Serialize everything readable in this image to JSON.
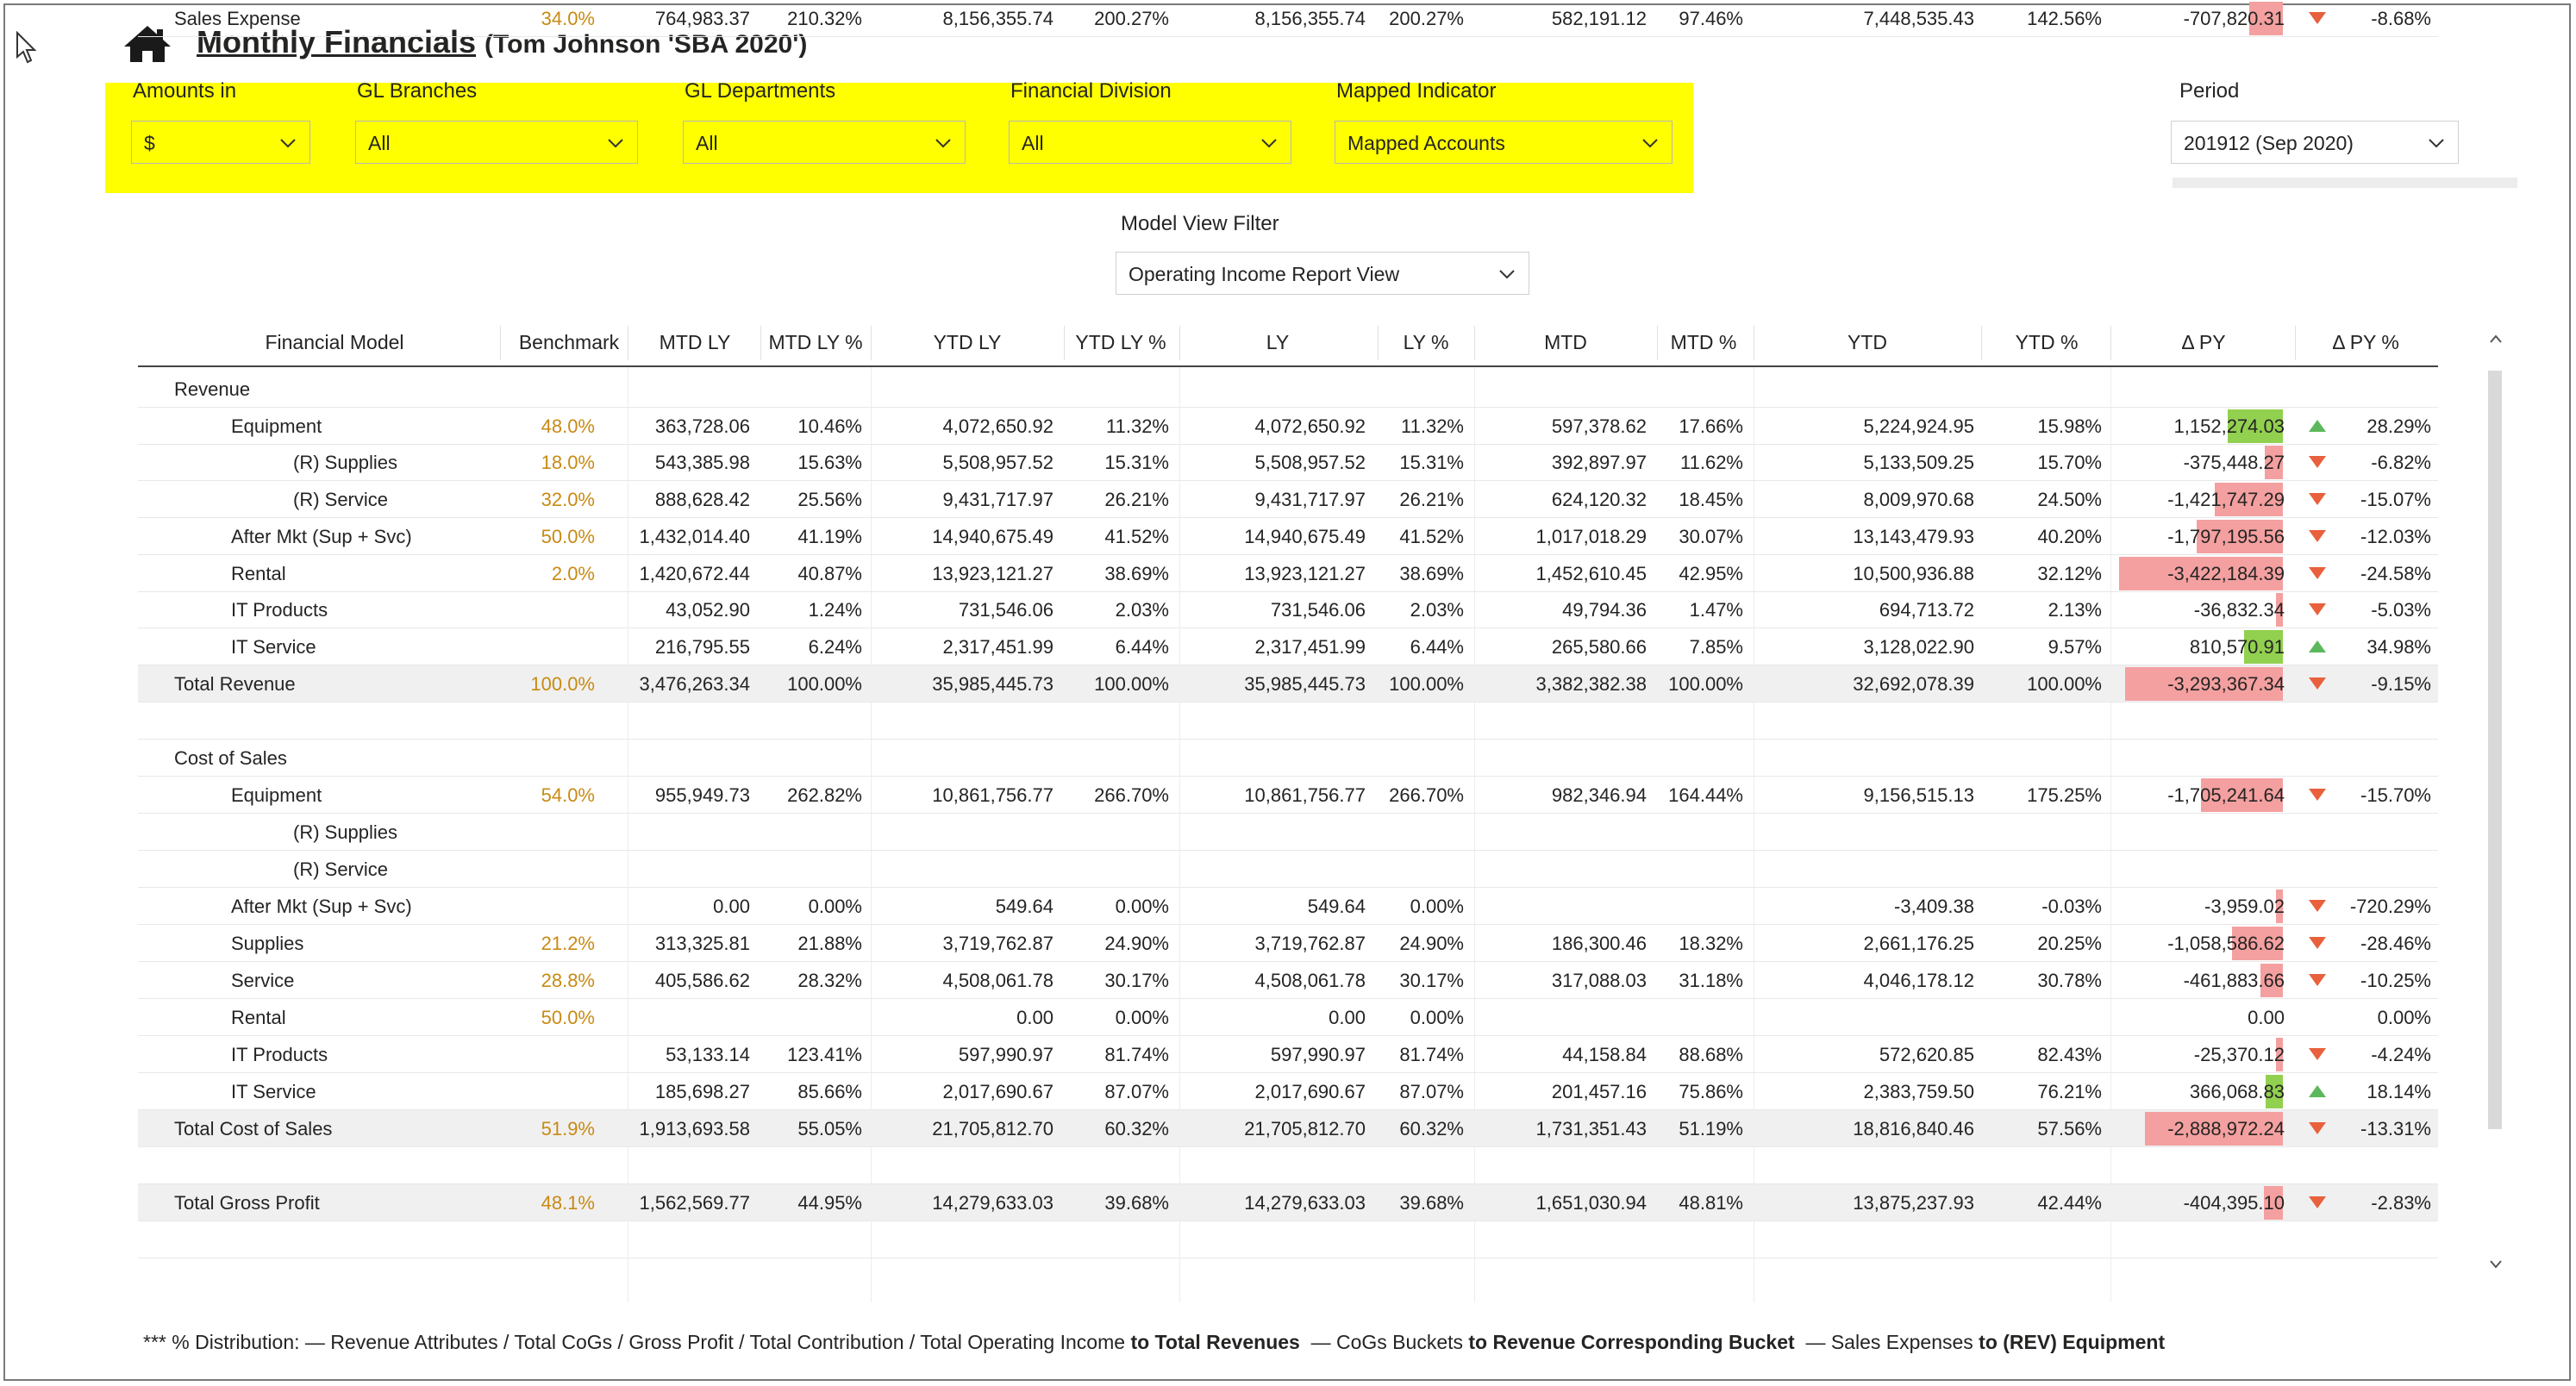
{
  "header": {
    "title": "Monthly Financials",
    "subtitle": "(Tom Johnson 'SBA 2020')"
  },
  "filters": [
    {
      "label": "Amounts in",
      "value": "$"
    },
    {
      "label": "GL Branches",
      "value": "All"
    },
    {
      "label": "GL Departments",
      "value": "All"
    },
    {
      "label": "Financial Division",
      "value": "All"
    },
    {
      "label": "Mapped Indicator",
      "value": "Mapped Accounts"
    }
  ],
  "period": {
    "label": "Period",
    "value": "201912 (Sep 2020)"
  },
  "model_view": {
    "label": "Model View Filter",
    "value": "Operating Income Report View"
  },
  "table": {
    "columns": [
      "Financial Model",
      "Benchmark",
      "MTD LY",
      "MTD LY %",
      "YTD LY",
      "YTD LY %",
      "LY",
      "LY %",
      "MTD",
      "MTD %",
      "YTD",
      "YTD %",
      "Δ PY",
      "Δ PY %"
    ],
    "rows": [
      {
        "label": "Revenue",
        "level": 0,
        "cells": [
          "",
          "",
          "",
          "",
          "",
          "",
          "",
          "",
          "",
          "",
          "",
          "",
          ""
        ]
      },
      {
        "label": "Equipment",
        "level": 1,
        "cells": [
          "48.0%",
          "363,728.06",
          "10.46%",
          "4,072,650.92",
          "11.32%",
          "4,072,650.92",
          "11.32%",
          "597,378.62",
          "17.66%",
          "5,224,924.95",
          "15.98%",
          "1,152,274.03",
          "28.29%"
        ],
        "delta": 1152274.03,
        "dir": "up"
      },
      {
        "label": "(R) Supplies",
        "level": 2,
        "cells": [
          "18.0%",
          "543,385.98",
          "15.63%",
          "5,508,957.52",
          "15.31%",
          "5,508,957.52",
          "15.31%",
          "392,897.97",
          "11.62%",
          "5,133,509.25",
          "15.70%",
          "-375,448.27",
          "-6.82%"
        ],
        "delta": -375448.27,
        "dir": "down"
      },
      {
        "label": "(R) Service",
        "level": 2,
        "cells": [
          "32.0%",
          "888,628.42",
          "25.56%",
          "9,431,717.97",
          "26.21%",
          "9,431,717.97",
          "26.21%",
          "624,120.32",
          "18.45%",
          "8,009,970.68",
          "24.50%",
          "-1,421,747.29",
          "-15.07%"
        ],
        "delta": -1421747.29,
        "dir": "down"
      },
      {
        "label": "After Mkt (Sup + Svc)",
        "level": 1,
        "cells": [
          "50.0%",
          "1,432,014.40",
          "41.19%",
          "14,940,675.49",
          "41.52%",
          "14,940,675.49",
          "41.52%",
          "1,017,018.29",
          "30.07%",
          "13,143,479.93",
          "40.20%",
          "-1,797,195.56",
          "-12.03%"
        ],
        "delta": -1797195.56,
        "dir": "down"
      },
      {
        "label": "Rental",
        "level": 1,
        "cells": [
          "2.0%",
          "1,420,672.44",
          "40.87%",
          "13,923,121.27",
          "38.69%",
          "13,923,121.27",
          "38.69%",
          "1,452,610.45",
          "42.95%",
          "10,500,936.88",
          "32.12%",
          "-3,422,184.39",
          "-24.58%"
        ],
        "delta": -3422184.39,
        "dir": "down"
      },
      {
        "label": "IT Products",
        "level": 1,
        "cells": [
          "",
          "43,052.90",
          "1.24%",
          "731,546.06",
          "2.03%",
          "731,546.06",
          "2.03%",
          "49,794.36",
          "1.47%",
          "694,713.72",
          "2.13%",
          "-36,832.34",
          "-5.03%"
        ],
        "delta": -36832.34,
        "dir": "down"
      },
      {
        "label": "IT Service",
        "level": 1,
        "cells": [
          "",
          "216,795.55",
          "6.24%",
          "2,317,451.99",
          "6.44%",
          "2,317,451.99",
          "6.44%",
          "265,580.66",
          "7.85%",
          "3,128,022.90",
          "9.57%",
          "810,570.91",
          "34.98%"
        ],
        "delta": 810570.91,
        "dir": "up"
      },
      {
        "label": "Total Revenue",
        "level": 0,
        "total": true,
        "cells": [
          "100.0%",
          "3,476,263.34",
          "100.00%",
          "35,985,445.73",
          "100.00%",
          "35,985,445.73",
          "100.00%",
          "3,382,382.38",
          "100.00%",
          "32,692,078.39",
          "100.00%",
          "-3,293,367.34",
          "-9.15%"
        ],
        "delta": -3293367.34,
        "dir": "down"
      },
      {
        "label": "",
        "level": 0,
        "cells": [
          "",
          "",
          "",
          "",
          "",
          "",
          "",
          "",
          "",
          "",
          "",
          "",
          ""
        ]
      },
      {
        "label": "Cost of Sales",
        "level": 0,
        "cells": [
          "",
          "",
          "",
          "",
          "",
          "",
          "",
          "",
          "",
          "",
          "",
          "",
          ""
        ]
      },
      {
        "label": "Equipment",
        "level": 1,
        "cells": [
          "54.0%",
          "955,949.73",
          "262.82%",
          "10,861,756.77",
          "266.70%",
          "10,861,756.77",
          "266.70%",
          "982,346.94",
          "164.44%",
          "9,156,515.13",
          "175.25%",
          "-1,705,241.64",
          "-15.70%"
        ],
        "delta": -1705241.64,
        "dir": "down"
      },
      {
        "label": "(R) Supplies",
        "level": 2,
        "cells": [
          "",
          "",
          "",
          "",
          "",
          "",
          "",
          "",
          "",
          "",
          "",
          "",
          ""
        ]
      },
      {
        "label": "(R) Service",
        "level": 2,
        "cells": [
          "",
          "",
          "",
          "",
          "",
          "",
          "",
          "",
          "",
          "",
          "",
          "",
          ""
        ]
      },
      {
        "label": "After Mkt (Sup + Svc)",
        "level": 1,
        "cells": [
          "",
          "0.00",
          "0.00%",
          "549.64",
          "0.00%",
          "549.64",
          "0.00%",
          "",
          "",
          "-3,409.38",
          "-0.03%",
          "-3,959.02",
          "-720.29%"
        ],
        "delta": -3959.02,
        "dir": "down"
      },
      {
        "label": "Supplies",
        "level": 1,
        "cells": [
          "21.2%",
          "313,325.81",
          "21.88%",
          "3,719,762.87",
          "24.90%",
          "3,719,762.87",
          "24.90%",
          "186,300.46",
          "18.32%",
          "2,661,176.25",
          "20.25%",
          "-1,058,586.62",
          "-28.46%"
        ],
        "delta": -1058586.62,
        "dir": "down"
      },
      {
        "label": "Service",
        "level": 1,
        "cells": [
          "28.8%",
          "405,586.62",
          "28.32%",
          "4,508,061.78",
          "30.17%",
          "4,508,061.78",
          "30.17%",
          "317,088.03",
          "31.18%",
          "4,046,178.12",
          "30.78%",
          "-461,883.66",
          "-10.25%"
        ],
        "delta": -461883.66,
        "dir": "down"
      },
      {
        "label": "Rental",
        "level": 1,
        "cells": [
          "50.0%",
          "",
          "",
          "0.00",
          "0.00%",
          "0.00",
          "0.00%",
          "",
          "",
          "",
          "",
          "0.00",
          "0.00%"
        ],
        "delta": 0,
        "dir": ""
      },
      {
        "label": "IT Products",
        "level": 1,
        "cells": [
          "",
          "53,133.14",
          "123.41%",
          "597,990.97",
          "81.74%",
          "597,990.97",
          "81.74%",
          "44,158.84",
          "88.68%",
          "572,620.85",
          "82.43%",
          "-25,370.12",
          "-4.24%"
        ],
        "delta": -25370.12,
        "dir": "down"
      },
      {
        "label": "IT Service",
        "level": 1,
        "cells": [
          "",
          "185,698.27",
          "85.66%",
          "2,017,690.67",
          "87.07%",
          "2,017,690.67",
          "87.07%",
          "201,457.16",
          "75.86%",
          "2,383,759.50",
          "76.21%",
          "366,068.83",
          "18.14%"
        ],
        "delta": 366068.83,
        "dir": "up"
      },
      {
        "label": "Total Cost of Sales",
        "level": 0,
        "total": true,
        "cells": [
          "51.9%",
          "1,913,693.58",
          "55.05%",
          "21,705,812.70",
          "60.32%",
          "21,705,812.70",
          "60.32%",
          "1,731,351.43",
          "51.19%",
          "18,816,840.46",
          "57.56%",
          "-2,888,972.24",
          "-13.31%"
        ],
        "delta": -2888972.24,
        "dir": "down"
      },
      {
        "label": "",
        "level": 0,
        "cells": [
          "",
          "",
          "",
          "",
          "",
          "",
          "",
          "",
          "",
          "",
          "",
          "",
          ""
        ]
      },
      {
        "label": "Total Gross Profit",
        "level": 0,
        "total": true,
        "cells": [
          "48.1%",
          "1,562,569.77",
          "44.95%",
          "14,279,633.03",
          "39.68%",
          "14,279,633.03",
          "39.68%",
          "1,651,030.94",
          "48.81%",
          "13,875,237.93",
          "42.44%",
          "-404,395.10",
          "-2.83%"
        ],
        "delta": -404395.1,
        "dir": "down"
      },
      {
        "label": "",
        "level": 0,
        "cells": [
          "",
          "",
          "",
          "",
          "",
          "",
          "",
          "",
          "",
          "",
          "",
          "",
          ""
        ]
      },
      {
        "label": "Sales Expense",
        "level": 0,
        "cells": [
          "34.0%",
          "764,983.37",
          "210.32%",
          "8,156,355.74",
          "200.27%",
          "8,156,355.74",
          "200.27%",
          "582,191.12",
          "97.46%",
          "7,448,535.43",
          "142.56%",
          "-707,820.31",
          "-8.68%"
        ],
        "delta": -707820.31,
        "dir": "down"
      }
    ]
  },
  "footer": {
    "p1": "*** % Distribution: — Revenue Attributes / Total CoGs / Gross Profit / Total Contribution / Total Operating Income",
    "b1": "to Total Revenues",
    "p2": "— CoGs Buckets",
    "b2": "to Revenue Corresponding Bucket",
    "p3": "— Sales Expenses",
    "b3": "to (REV) Equipment"
  },
  "colors": {
    "highlight": "#ffff00",
    "positive": "#92d050",
    "negative": "#f4a0a0",
    "benchmark": "#c88a14",
    "up_arrow": "#5cb85c",
    "down_arrow": "#e8603c"
  }
}
